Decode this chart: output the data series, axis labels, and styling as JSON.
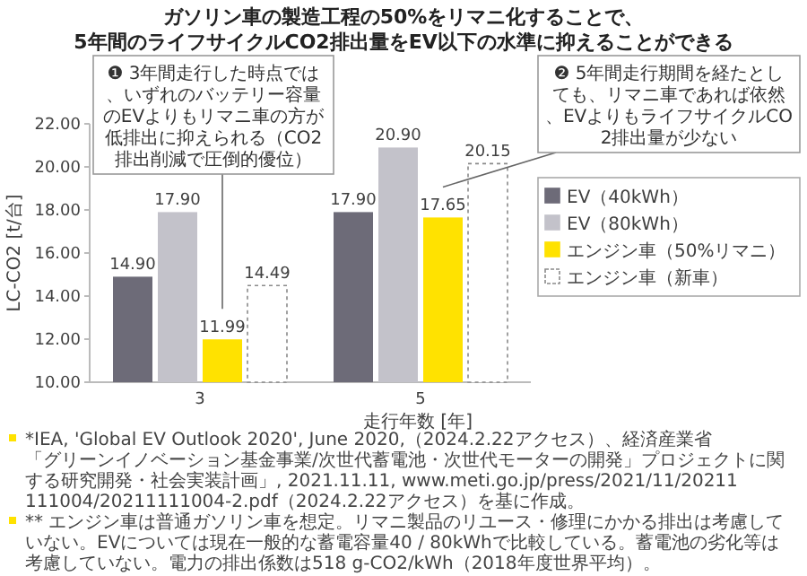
{
  "chart_data": {
    "type": "bar",
    "title": "ガソリン車の製造工程の50%をリマニ化することで、\n5年間のライフサイクルCO2排出量をEV以下の水準に抑えることができる",
    "xlabel": "走行年数 [年]",
    "ylabel": "LC-CO2 [t/台]",
    "categories": [
      "3",
      "5"
    ],
    "series": [
      {
        "name": "EV（40kWh）",
        "color": "#6d6b78",
        "values": [
          14.9,
          17.9
        ],
        "value_labels": [
          "14.90",
          "17.90"
        ]
      },
      {
        "name": "EV（80kWh）",
        "color": "#c3c2ca",
        "values": [
          17.9,
          20.9
        ],
        "value_labels": [
          "17.90",
          "20.90"
        ]
      },
      {
        "name": "エンジン車（50%リマニ）",
        "color": "#ffe200",
        "values": [
          11.99,
          17.65
        ],
        "value_labels": [
          "11.99",
          "17.65"
        ]
      },
      {
        "name": "エンジン車（新車）",
        "color": "#ffffff",
        "line_style": "dashed",
        "values": [
          14.49,
          20.15
        ],
        "value_labels": [
          "14.49",
          "20.15"
        ]
      }
    ],
    "ylim": [
      10,
      22
    ],
    "yticks": [
      {
        "value": 10,
        "label": "10.00"
      },
      {
        "value": 12,
        "label": "12.00"
      },
      {
        "value": 14,
        "label": "14.00"
      },
      {
        "value": 16,
        "label": "16.00"
      },
      {
        "value": 18,
        "label": "18.00"
      },
      {
        "value": 20,
        "label": "20.00"
      },
      {
        "value": 22,
        "label": "22.00"
      }
    ],
    "grid": false,
    "legend": "right",
    "annotations": [
      "❶ 3年間走行した時点では、いずれのバッテリー容量のEVよりもリマニ車の方が低排出に抑えられる（CO2排出削減で圧倒的優位）",
      "❷ 5年間走行期間を経たとしても、リマニ車であれば依然、EVよりもライフサイクルCO2排出量が少ない",
      "*IEA, 'Global EV Outlook 2020', June 2020,（2024.2.22アクセス）、経済産業省「グリーンイノベーション基金事業/次世代蓄電池・次世代モーターの開発」プロジェクトに関する研究開発・社会実装計画」, 2021.11.11, www.meti.go.jp/press/2021/11/20211111004/20211111004-2.pdf（2024.2.22アクセス）を基に作成。",
      "** エンジン車は普通ガソリン車を想定。リマニ製品のリユース・修理にかかる排出は考慮していない。EVについては現在一般的な蓄電容量40 / 80kWhで比較している。蓄電池の劣化等は考慮していない。電力の排出係数は518 g-CO2/kWh（2018年度世界平均）。"
    ]
  }
}
